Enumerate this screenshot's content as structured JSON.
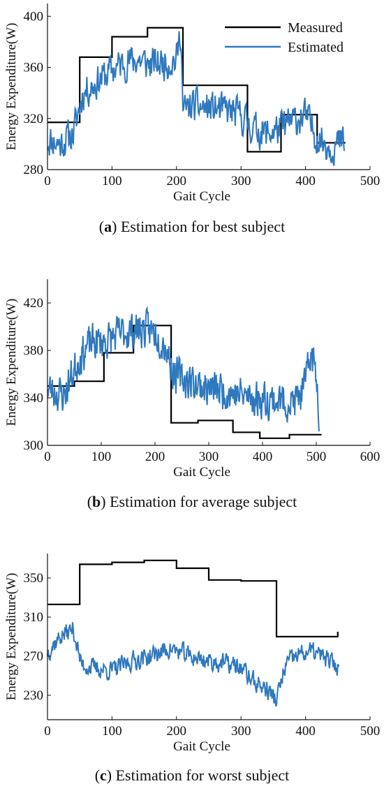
{
  "colors": {
    "measured": "#000000",
    "estimated": "#2e78be",
    "axis": "#111111"
  },
  "chart_data": [
    {
      "id": "a",
      "type": "line",
      "caption_label": "a",
      "caption_text": " Estimation for best subject",
      "xlabel": "Gait Cycle",
      "ylabel": "Energy Expenditure(W)",
      "xlim": [
        0,
        500
      ],
      "ylim": [
        280,
        410
      ],
      "xticks": [
        0,
        100,
        200,
        300,
        400,
        500
      ],
      "yticks": [
        280,
        320,
        360,
        400
      ],
      "grid": false,
      "legend": {
        "position": "top-right",
        "entries": [
          "Measured",
          "Estimated"
        ]
      },
      "series": [
        {
          "name": "Measured",
          "color": "#000000",
          "step": true,
          "x": [
            0,
            30,
            50,
            100,
            155,
            210,
            310,
            362,
            418,
            462
          ],
          "y": [
            317,
            317,
            368,
            384,
            391,
            346,
            294,
            323,
            301,
            301
          ]
        },
        {
          "name": "Estimated",
          "color": "#2e78be",
          "seed": 11,
          "noise": 12,
          "n": 460,
          "anchors_x": [
            0,
            20,
            40,
            55,
            80,
            100,
            120,
            140,
            160,
            180,
            200,
            207,
            210,
            225,
            250,
            280,
            300,
            320,
            340,
            360,
            380,
            400,
            420,
            440,
            460
          ],
          "anchors_y": [
            304,
            300,
            308,
            340,
            350,
            358,
            364,
            366,
            362,
            364,
            366,
            390,
            325,
            330,
            328,
            326,
            322,
            312,
            308,
            312,
            318,
            322,
            304,
            298,
            302
          ]
        }
      ]
    },
    {
      "id": "b",
      "type": "line",
      "caption_label": "b",
      "caption_text": " Estimation for average subject",
      "xlabel": "Gait Cycle",
      "ylabel": "Energy Expenditure(W)",
      "xlim": [
        0,
        600
      ],
      "ylim": [
        300,
        440
      ],
      "xticks": [
        0,
        100,
        200,
        300,
        400,
        500,
        600
      ],
      "yticks": [
        300,
        340,
        380,
        420
      ],
      "grid": false,
      "series": [
        {
          "name": "Measured",
          "color": "#000000",
          "step": true,
          "x": [
            0,
            50,
            105,
            160,
            230,
            280,
            345,
            395,
            450,
            510
          ],
          "y": [
            350,
            354,
            378,
            401,
            319,
            321,
            311,
            306,
            309,
            309
          ]
        },
        {
          "name": "Estimated",
          "color": "#2e78be",
          "seed": 23,
          "noise": 14,
          "n": 505,
          "anchors_x": [
            0,
            30,
            60,
            80,
            110,
            140,
            170,
            200,
            220,
            235,
            260,
            300,
            340,
            380,
            420,
            460,
            480,
            490,
            500,
            505
          ],
          "anchors_y": [
            348,
            342,
            375,
            386,
            388,
            395,
            398,
            396,
            384,
            360,
            355,
            348,
            345,
            340,
            338,
            336,
            350,
            380,
            360,
            330
          ]
        }
      ]
    },
    {
      "id": "c",
      "type": "line",
      "caption_label": "c",
      "caption_text": " Estimation for worst subject",
      "xlabel": "Gait Cycle",
      "ylabel": "Energy Expenditure(W)",
      "xlim": [
        0,
        500
      ],
      "ylim": [
        205,
        375
      ],
      "xticks": [
        0,
        100,
        200,
        300,
        400,
        500
      ],
      "yticks": [
        230,
        270,
        310,
        350
      ],
      "grid": false,
      "series": [
        {
          "name": "Measured",
          "color": "#000000",
          "step": true,
          "x": [
            0,
            50,
            100,
            150,
            200,
            250,
            300,
            355,
            450
          ],
          "y": [
            323,
            364,
            366,
            368,
            360,
            348,
            347,
            290,
            295
          ]
        },
        {
          "name": "Estimated",
          "color": "#2e78be",
          "seed": 37,
          "noise": 9,
          "n": 452,
          "anchors_x": [
            0,
            20,
            40,
            52,
            70,
            100,
            130,
            160,
            190,
            220,
            250,
            280,
            300,
            320,
            340,
            355,
            370,
            390,
            410,
            430,
            452
          ],
          "anchors_y": [
            275,
            290,
            298,
            262,
            258,
            255,
            265,
            270,
            278,
            270,
            265,
            262,
            258,
            244,
            236,
            225,
            262,
            272,
            275,
            268,
            258
          ]
        }
      ]
    }
  ]
}
